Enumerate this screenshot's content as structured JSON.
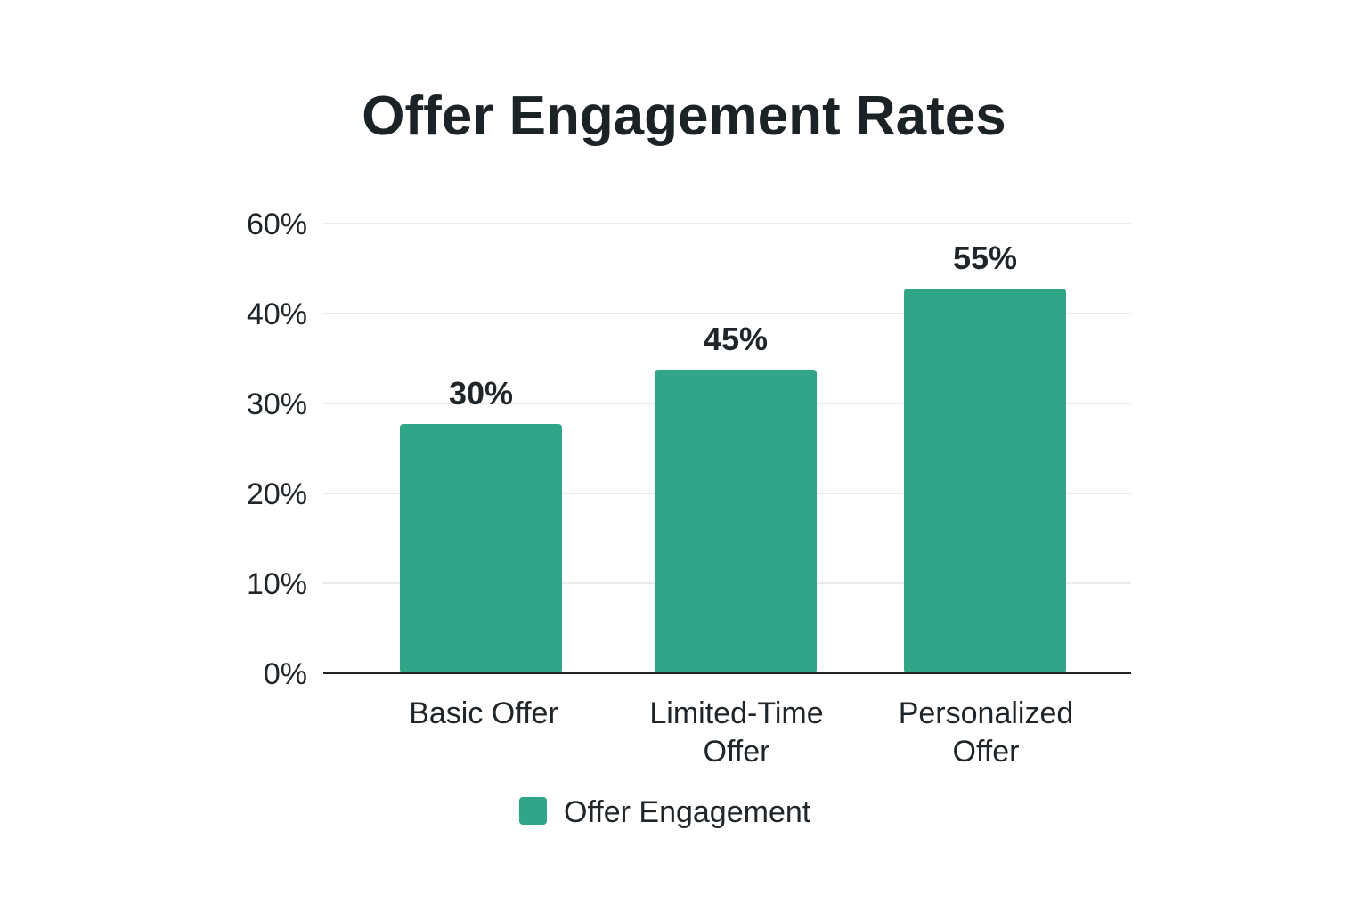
{
  "chart_data": {
    "type": "bar",
    "title": "Offer Engagement Rates",
    "categories": [
      "Basic Offer",
      "Limited-Time Offer",
      "Personalized Offer"
    ],
    "category_lines": [
      [
        "Basic Offer"
      ],
      [
        "Limited-Time",
        "Offer"
      ],
      [
        "Personalized",
        "Offer"
      ]
    ],
    "series": [
      {
        "name": "Offer Engagement",
        "values": [
          30,
          45,
          55
        ],
        "data_labels": [
          "30%",
          "45%",
          "55%"
        ],
        "color": "#31a588"
      }
    ],
    "y_ticks": [
      {
        "value": 0,
        "label": "0%"
      },
      {
        "value": 10,
        "label": "10%"
      },
      {
        "value": 20,
        "label": "20%"
      },
      {
        "value": 30,
        "label": "30%"
      },
      {
        "value": 40,
        "label": "40%"
      },
      {
        "value": 60,
        "label": "60%"
      }
    ],
    "xlabel": "",
    "ylabel": "",
    "grid": true,
    "legend": "bottom-center"
  },
  "colors": {
    "bar": "#31a588",
    "grid": "#e2e4e6",
    "axis": "#1f2528",
    "text": "#1f2528"
  }
}
